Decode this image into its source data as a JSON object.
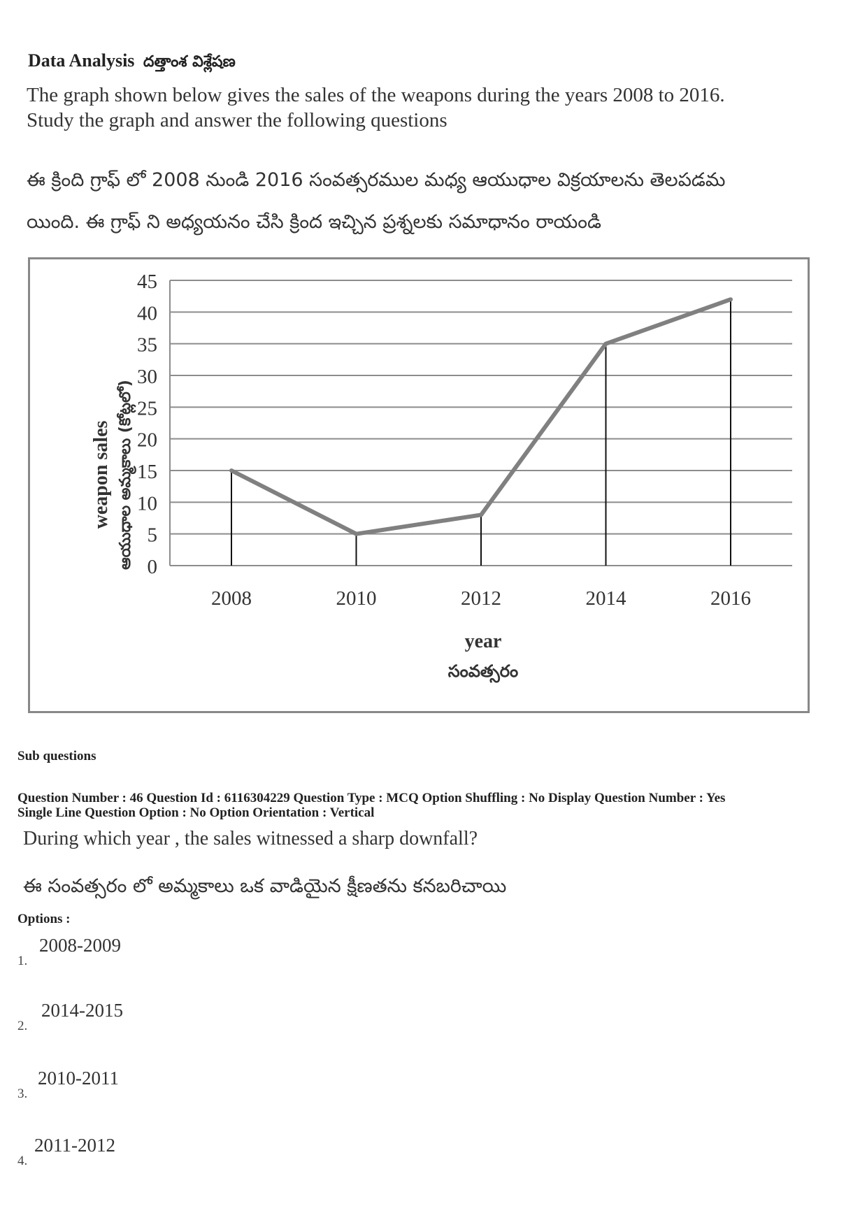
{
  "heading": {
    "title": "Data Analysis",
    "title_te": "దత్తాంశ విశ్లేషణ"
  },
  "intro": {
    "en_line1": "The graph shown below gives the sales of the weapons during the years 2008 to 2016.",
    "en_line2": "Study the graph and answer the following questions",
    "te_line1": "ఈ క్రింది గ్రాఫ్ లో  2008 నుండి 2016 సంవత్సరముల మధ్య ఆయుధాల విక్రయాలను తెలపడమ",
    "te_line2": "యింది. ఈ గ్రాఫ్ ని అధ్యయనం చేసి క్రింద ఇచ్చిన ప్రశ్నలకు సమాధానం రాయండి"
  },
  "chart_data": {
    "type": "line",
    "x": [
      2008,
      2010,
      2012,
      2014,
      2016
    ],
    "values": [
      15,
      5,
      8,
      35,
      42
    ],
    "xlabel": "year",
    "xlabel_te": "సంవత్సరం",
    "ylabel": "weapon sales",
    "ylabel_te": "ఆయుధాల అమ్మకాలు (కోట్లలో)",
    "ylim": [
      0,
      45
    ],
    "yticks": [
      0,
      5,
      10,
      15,
      20,
      25,
      30,
      35,
      40,
      45
    ],
    "grid": true,
    "drop_lines": true,
    "line_color": "#808080",
    "legend": "none"
  },
  "sub_questions_label": "Sub questions",
  "meta": {
    "line1": "Question Number : 46  Question Id : 6116304229  Question Type : MCQ  Option Shuffling : No  Display Question Number : Yes",
    "line2": "Single Line Question Option : No  Option Orientation : Vertical"
  },
  "question": {
    "en": "During which year , the sales witnessed a sharp downfall?",
    "te": "ఈ సంవత్సరం లో అమ్మకాలు ఒక వాడియైన క్షీణతను కనబరిచాయి"
  },
  "options_label": "Options :",
  "options": [
    {
      "num": "1.",
      "text": "2008-2009"
    },
    {
      "num": "2.",
      "text": "2014-2015"
    },
    {
      "num": "3.",
      "text": "2010-2011"
    },
    {
      "num": "4.",
      "text": "2011-2012"
    }
  ]
}
